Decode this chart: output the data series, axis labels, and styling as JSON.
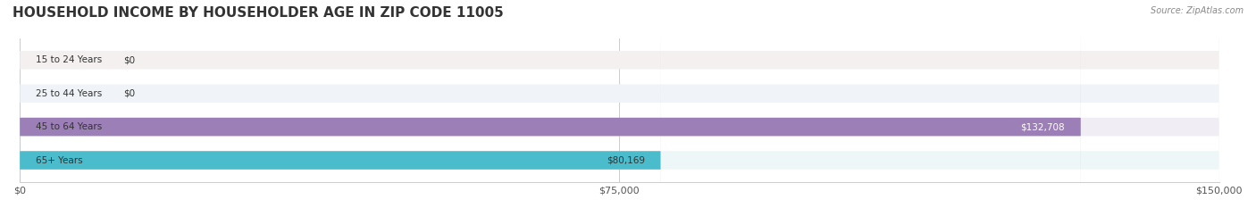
{
  "title": "HOUSEHOLD INCOME BY HOUSEHOLDER AGE IN ZIP CODE 11005",
  "source": "Source: ZipAtlas.com",
  "categories": [
    "15 to 24 Years",
    "25 to 44 Years",
    "45 to 64 Years",
    "65+ Years"
  ],
  "values": [
    0,
    0,
    132708,
    80169
  ],
  "bar_colors": [
    "#e07b7b",
    "#8ab4d4",
    "#9b7fb6",
    "#4bbccc"
  ],
  "bg_colors": [
    "#f5f0f0",
    "#f0f4f8",
    "#f0edf5",
    "#edf7f8"
  ],
  "label_colors": [
    "#333333",
    "#333333",
    "#ffffff",
    "#333333"
  ],
  "xlim": [
    0,
    150000
  ],
  "xticks": [
    0,
    75000,
    150000
  ],
  "xticklabels": [
    "$0",
    "$75,000",
    "$150,000"
  ],
  "value_labels": [
    "$0",
    "$0",
    "$132,708",
    "$80,169"
  ],
  "background_color": "#ffffff",
  "title_fontsize": 11,
  "bar_height": 0.55
}
